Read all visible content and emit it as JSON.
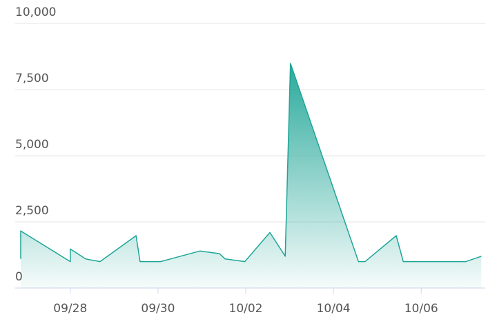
{
  "chart_data": {
    "type": "area",
    "x": [
      -1.13,
      -1.13,
      0,
      0,
      0.35,
      0.68,
      1.5,
      1.59,
      2.06,
      2.96,
      3.4,
      3.53,
      3.98,
      4.55,
      4.9,
      5.02,
      6.57,
      6.72,
      7.43,
      7.59,
      9.02,
      9.37
    ],
    "series": [
      {
        "color": "#1ea596",
        "values": [
          1100,
          2160,
          1000,
          1480,
          1100,
          1000,
          1980,
          1000,
          1000,
          1400,
          1300,
          1100,
          1000,
          2100,
          1200,
          8490,
          1000,
          1000,
          1980,
          1000,
          1000,
          1200
        ]
      }
    ],
    "xlim": [
      -1.13,
      9.46
    ],
    "xticks": [
      {
        "value": 0,
        "label": "09/28"
      },
      {
        "value": 2,
        "label": "09/30"
      },
      {
        "value": 4,
        "label": "10/02"
      },
      {
        "value": 6,
        "label": "10/04"
      },
      {
        "value": 8,
        "label": "10/06"
      }
    ],
    "ylim": [
      0,
      10000
    ],
    "yticks": [
      0,
      {
        "value": 2500,
        "label": "2,500"
      },
      {
        "value": 5000,
        "label": "5,000"
      },
      {
        "value": 7500,
        "label": "7,500"
      },
      {
        "value": 10000,
        "label": "10,000"
      }
    ],
    "grid": true
  }
}
